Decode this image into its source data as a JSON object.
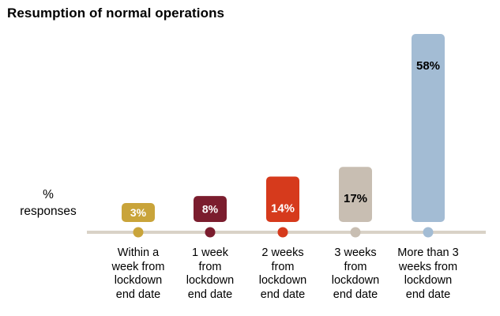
{
  "chart_data": {
    "type": "bar",
    "title": "Resumption of normal operations",
    "ylabel": [
      "%",
      "responses"
    ],
    "ylim": [
      0,
      58
    ],
    "categories": [
      [
        "Within a",
        "week from",
        "lockdown",
        "end date"
      ],
      [
        "1 week",
        "from",
        "lockdown",
        "end date"
      ],
      [
        "2 weeks",
        "from",
        "lockdown",
        "end date"
      ],
      [
        "3 weeks",
        "from",
        "lockdown",
        "end date"
      ],
      [
        "More than 3",
        "weeks from",
        "lockdown",
        "end date"
      ]
    ],
    "values": [
      3,
      8,
      14,
      17,
      58
    ],
    "data_labels": [
      "3%",
      "8%",
      "14%",
      "17%",
      "58%"
    ],
    "colors": [
      "#c9a43a",
      "#7b1d2e",
      "#d63a1c",
      "#c8beb2",
      "#a3bcd4"
    ],
    "marker_colors": [
      "#c9a43a",
      "#7b1d2e",
      "#d63a1c",
      "#c8beb2",
      "#a3bcd4"
    ],
    "label_colors": [
      "#ffffff",
      "#ffffff",
      "#ffffff",
      "#000000",
      "#000000"
    ],
    "axis_color": "#d9d2c7"
  }
}
